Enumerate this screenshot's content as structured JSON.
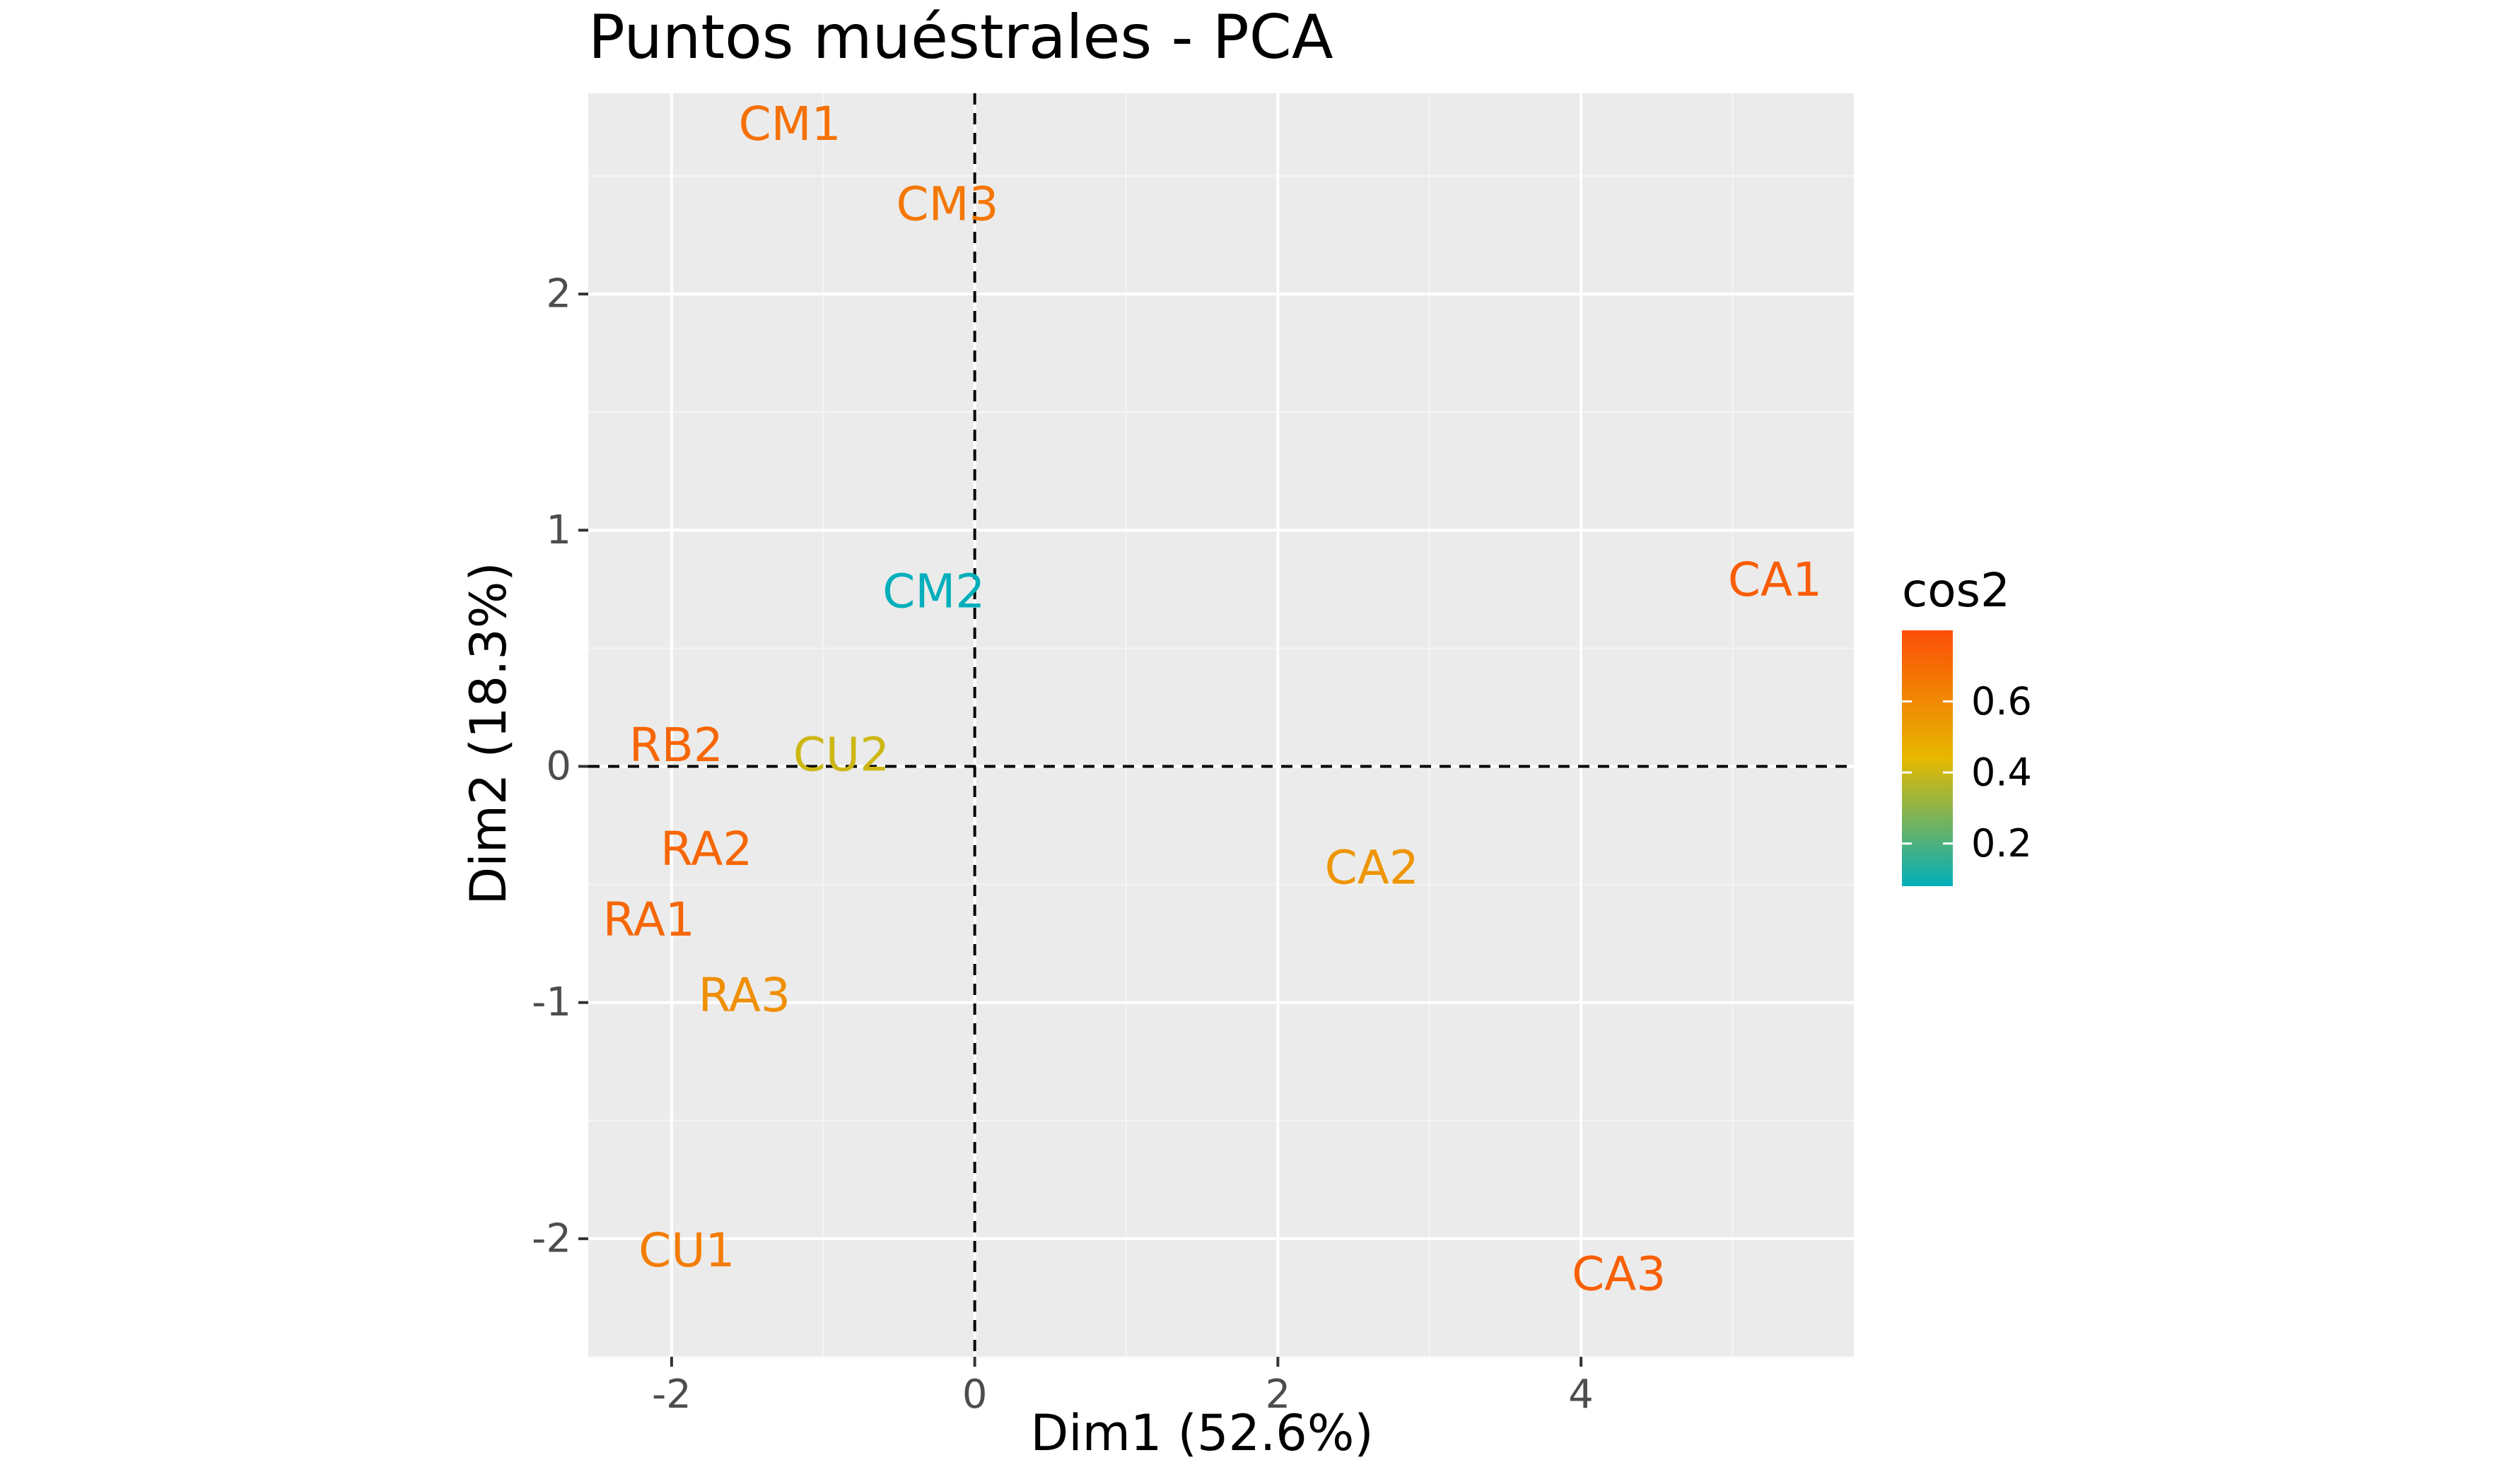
{
  "chart_data": {
    "type": "scatter",
    "title": "Puntos muéstrales - PCA",
    "xlabel": "Dim1 (52.6%)",
    "ylabel": "Dim2 (18.3%)",
    "xlim": [
      -2.55,
      5.8
    ],
    "ylim": [
      -2.5,
      2.85
    ],
    "x_ticks": [
      -2,
      0,
      2,
      4
    ],
    "x_tick_labels": [
      "-2",
      "0",
      "2",
      "4"
    ],
    "y_ticks": [
      -2,
      -1,
      0,
      1,
      2
    ],
    "y_tick_labels": [
      "-2",
      "-1",
      "0",
      "1",
      "2"
    ],
    "grid": true,
    "reference_lines": {
      "x": 0,
      "y": 0,
      "style": "dashed"
    },
    "points": [
      {
        "label": "CM1",
        "x": -1.22,
        "y": 2.72,
        "cos2": 0.68
      },
      {
        "label": "CM3",
        "x": -0.18,
        "y": 2.38,
        "cos2": 0.66
      },
      {
        "label": "CM2",
        "x": -0.27,
        "y": 0.74,
        "cos2": 0.08
      },
      {
        "label": "CA1",
        "x": 5.28,
        "y": 0.79,
        "cos2": 0.75
      },
      {
        "label": "RB2",
        "x": -1.97,
        "y": 0.09,
        "cos2": 0.72
      },
      {
        "label": "CU2",
        "x": -0.88,
        "y": 0.05,
        "cos2": 0.4
      },
      {
        "label": "RA2",
        "x": -1.77,
        "y": -0.35,
        "cos2": 0.72
      },
      {
        "label": "CA2",
        "x": 2.62,
        "y": -0.43,
        "cos2": 0.56
      },
      {
        "label": "RA1",
        "x": -2.15,
        "y": -0.65,
        "cos2": 0.72
      },
      {
        "label": "RA3",
        "x": -1.52,
        "y": -0.97,
        "cos2": 0.58
      },
      {
        "label": "CU1",
        "x": -1.9,
        "y": -2.05,
        "cos2": 0.64
      },
      {
        "label": "CA3",
        "x": 4.25,
        "y": -2.15,
        "cos2": 0.74
      }
    ],
    "legend": {
      "title": "cos2",
      "placement": "right",
      "ticks": [
        0.6,
        0.4,
        0.2
      ],
      "tick_labels": [
        "0.6",
        "0.4",
        "0.2"
      ],
      "range": [
        0.08,
        0.8
      ],
      "gradient": [
        {
          "value": 0.08,
          "color": "#00AFBB"
        },
        {
          "value": 0.44,
          "color": "#E7B800"
        },
        {
          "value": 0.8,
          "color": "#FC4E07"
        }
      ]
    },
    "colors": {
      "panel_background": "#EBEBEB",
      "grid_major": "#FFFFFF",
      "grid_minor": "#F5F5F5",
      "reference_line": "#000000"
    }
  }
}
